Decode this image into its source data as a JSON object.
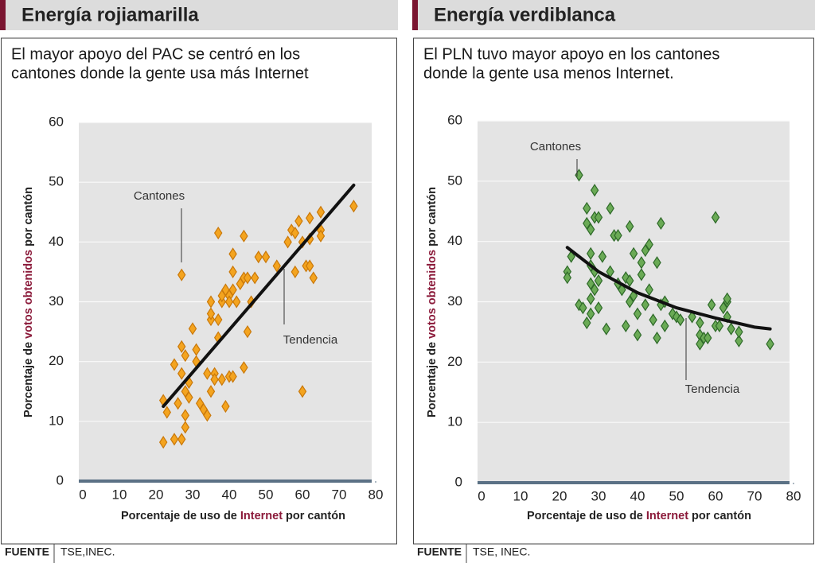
{
  "chart_data": [
    {
      "type": "scatter",
      "title": "Energía rojiamarilla",
      "subtitle": [
        "El mayor apoyo del PAC se centró en los",
        "cantones donde la gente usa más Internet"
      ],
      "xlabel": [
        "Porcentaje de uso de",
        "Internet",
        "por cantón"
      ],
      "ylabel": [
        "Porcentaje de",
        "votos obtenidos",
        "por cantón"
      ],
      "xlim": [
        0,
        80
      ],
      "ylim": [
        0,
        60
      ],
      "xticks": [
        0,
        10,
        20,
        30,
        40,
        50,
        60,
        70,
        80
      ],
      "yticks": [
        0,
        10,
        20,
        30,
        40,
        50,
        60
      ],
      "grid": true,
      "color": "#f4a41f",
      "edge_color": "#c9780a",
      "x": [
        22,
        22,
        23,
        25,
        25,
        26,
        27,
        27,
        27,
        27,
        28,
        28,
        28,
        28,
        29,
        29,
        30,
        31,
        31,
        32,
        33,
        34,
        34,
        35,
        35,
        35,
        35,
        36,
        36,
        37,
        37,
        37,
        38,
        38,
        38,
        39,
        39,
        40,
        40,
        40,
        41,
        41,
        41,
        41,
        42,
        43,
        44,
        44,
        44,
        45,
        45,
        46,
        47,
        48,
        50,
        53,
        56,
        57,
        58,
        58,
        59,
        60,
        60,
        61,
        62,
        62,
        62,
        63,
        65,
        65,
        65,
        74
      ],
      "values": [
        6.5,
        13.5,
        11.5,
        19.5,
        7,
        13,
        7,
        18,
        34.5,
        22.5,
        21,
        15,
        11,
        9,
        14,
        16.5,
        25.5,
        22,
        20,
        13,
        12,
        11,
        18,
        27,
        28,
        30,
        15,
        18,
        17,
        24,
        27,
        41.5,
        30,
        17,
        31,
        12.5,
        32,
        17.5,
        31,
        30,
        17.5,
        38,
        35,
        32,
        30,
        33,
        41,
        34,
        19,
        25,
        34,
        30,
        34,
        37.5,
        37.5,
        36,
        40,
        42,
        41.5,
        35,
        43.5,
        15,
        40,
        36,
        44,
        36,
        40.5,
        34,
        42,
        41,
        45,
        46
      ],
      "trend": {
        "x": [
          22,
          74
        ],
        "values": [
          12.5,
          49.5
        ]
      },
      "annotations": [
        "Cantones",
        "Tendencia"
      ],
      "source_label": "FUENTE",
      "source": "TSE,INEC."
    },
    {
      "type": "scatter",
      "title": "Energía verdiblanca",
      "subtitle": [
        "El PLN tuvo mayor apoyo en los cantones",
        "donde la gente usa menos Internet."
      ],
      "xlabel": [
        "Porcentaje de uso de",
        "Internet",
        "por cantón"
      ],
      "ylabel": [
        "Porcentaje de",
        "votos obtenidos",
        "por cantón"
      ],
      "xlim": [
        0,
        80
      ],
      "ylim": [
        0,
        60
      ],
      "xticks": [
        0,
        10,
        20,
        30,
        40,
        50,
        60,
        70,
        80
      ],
      "yticks": [
        0,
        10,
        20,
        30,
        40,
        50,
        60
      ],
      "grid": true,
      "color": "#6aaa55",
      "edge_color": "#2f6a2a",
      "x": [
        22,
        22,
        23,
        25,
        25,
        26,
        27,
        27,
        27,
        28,
        28,
        28,
        28,
        28,
        28,
        29,
        29,
        29,
        29,
        30,
        30,
        30,
        31,
        32,
        33,
        33,
        34,
        35,
        35,
        36,
        37,
        37,
        38,
        38,
        38,
        39,
        39,
        40,
        40,
        41,
        41,
        42,
        42,
        43,
        43,
        44,
        45,
        45,
        46,
        46,
        47,
        47,
        49,
        50,
        51,
        54,
        56,
        56,
        56,
        57,
        58,
        59,
        60,
        60,
        61,
        62,
        63,
        63,
        63,
        64,
        66,
        66,
        74
      ],
      "values": [
        35,
        34,
        37.5,
        29.5,
        51,
        29,
        26.5,
        45.5,
        43,
        42,
        28,
        30.5,
        33,
        36,
        38,
        48.5,
        44,
        35,
        32,
        33.5,
        29,
        44,
        37.5,
        25.5,
        35,
        45.5,
        41,
        41,
        33,
        32,
        34,
        26,
        42.5,
        33.5,
        30,
        38,
        31,
        28,
        24.5,
        34.5,
        36.5,
        29.5,
        38.5,
        39.5,
        32,
        27,
        24,
        36.5,
        29.5,
        43,
        30,
        26,
        28,
        27.5,
        27,
        27.5,
        24.5,
        23,
        26.5,
        24,
        24,
        29.5,
        44,
        26,
        26,
        29,
        27.5,
        30,
        30.5,
        25.5,
        23.5,
        25,
        23
      ],
      "trend": {
        "x": [
          22,
          30,
          40,
          50,
          60,
          70,
          74
        ],
        "values": [
          39,
          35,
          31.5,
          29,
          27.3,
          25.8,
          25.5
        ]
      },
      "annotations": [
        "Cantones",
        "Tendencia"
      ],
      "source_label": "FUENTE",
      "source": "TSE, INEC."
    }
  ]
}
